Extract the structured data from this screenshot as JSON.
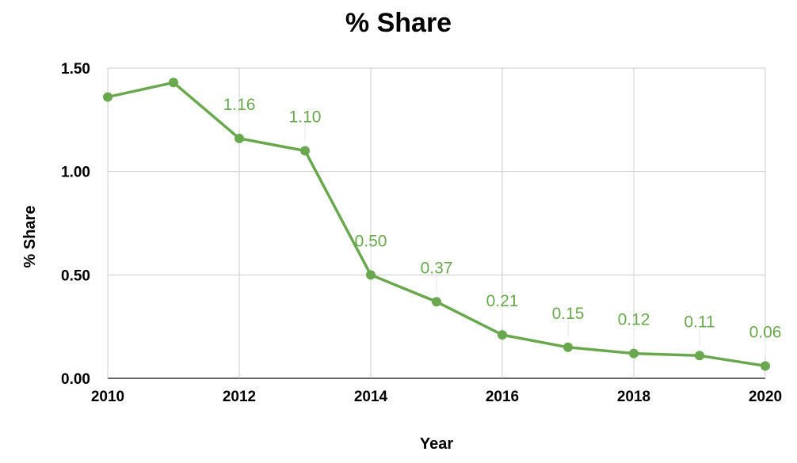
{
  "chart_data": {
    "type": "line",
    "title": "% Share",
    "xlabel": "Year",
    "ylabel": "% Share",
    "x": [
      2010,
      2011,
      2012,
      2013,
      2014,
      2015,
      2016,
      2017,
      2018,
      2019,
      2020
    ],
    "series": [
      {
        "values": [
          1.36,
          1.43,
          1.16,
          1.1,
          0.5,
          0.37,
          0.21,
          0.15,
          0.12,
          0.11,
          0.06
        ],
        "data_labels": [
          "",
          "",
          "1.16",
          "1.10",
          "0.50",
          "0.37",
          "0.21",
          "0.15",
          "0.12",
          "0.11",
          "0.06"
        ],
        "color": "#6aa84f"
      }
    ],
    "xlim": [
      2010,
      2020
    ],
    "ylim": [
      0,
      1.5
    ],
    "x_ticks": [
      "2010",
      "2012",
      "2014",
      "2016",
      "2018",
      "2020"
    ],
    "y_ticks": [
      "0.00",
      "0.50",
      "1.00",
      "1.50"
    ],
    "grid": true,
    "legend": "none"
  }
}
